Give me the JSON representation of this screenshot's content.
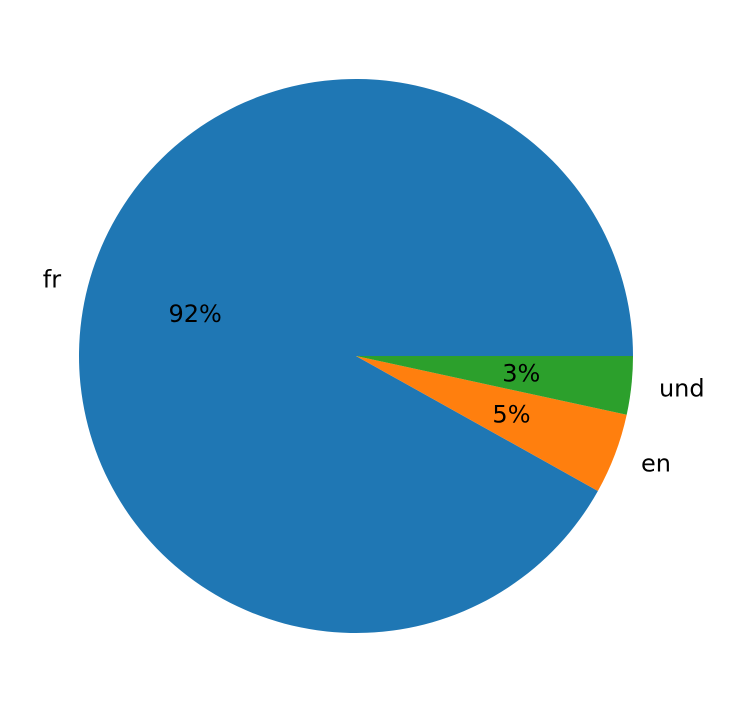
{
  "chart_data": {
    "type": "pie",
    "title": "",
    "start_angle_deg": 0,
    "direction": "counterclockwise",
    "slices": [
      {
        "label": "fr",
        "value": 91.9,
        "pct_label": "92%",
        "color": "#1f77b4"
      },
      {
        "label": "en",
        "value": 4.7,
        "pct_label": "5%",
        "color": "#ff7f0e"
      },
      {
        "label": "und",
        "value": 3.4,
        "pct_label": "3%",
        "color": "#2ca02c"
      }
    ]
  }
}
